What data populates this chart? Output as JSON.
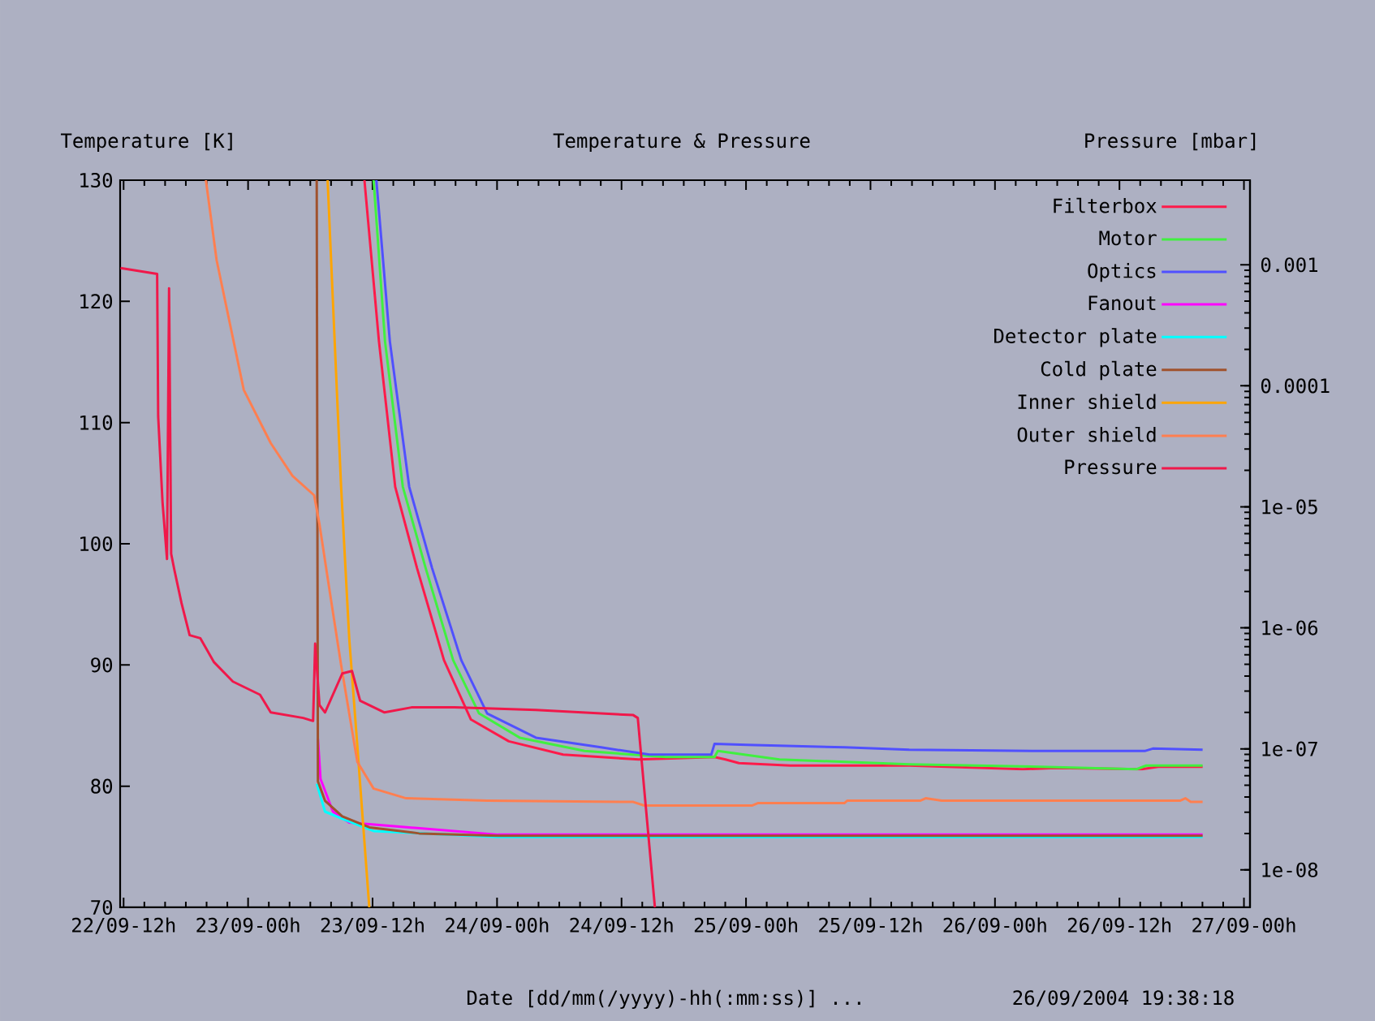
{
  "chart_data": {
    "type": "line",
    "title": "Temperature & Pressure",
    "ylabel": "Temperature [K]",
    "y2label": "Pressure [mbar]",
    "xlabel": "Date  [dd/mm(/yyyy)-hh(:mm:ss)] ...",
    "annotations": [
      "26/09/2004 19:38:18"
    ],
    "xlim": [
      "2004-09-22T11:40",
      "2004-09-27T00:35"
    ],
    "xticks": [
      {
        "value": "2004-09-22T12:00",
        "label": "22/09-12h"
      },
      {
        "value": "2004-09-23T00:00",
        "label": "23/09-00h"
      },
      {
        "value": "2004-09-23T12:00",
        "label": "23/09-12h"
      },
      {
        "value": "2004-09-24T00:00",
        "label": "24/09-00h"
      },
      {
        "value": "2004-09-24T12:00",
        "label": "24/09-12h"
      },
      {
        "value": "2004-09-25T00:00",
        "label": "25/09-00h"
      },
      {
        "value": "2004-09-25T12:00",
        "label": "25/09-12h"
      },
      {
        "value": "2004-09-26T00:00",
        "label": "26/09-00h"
      },
      {
        "value": "2004-09-26T12:00",
        "label": "26/09-12h"
      },
      {
        "value": "2004-09-27T00:00",
        "label": "27/09-00h"
      }
    ],
    "ylim": [
      70,
      130
    ],
    "yticks": [
      70,
      80,
      90,
      100,
      110,
      120,
      130
    ],
    "y2lim": [
      4.9e-09,
      0.005
    ],
    "y2ticks": [
      {
        "value": 1e-08,
        "label": "1e-08"
      },
      {
        "value": 1e-07,
        "label": "1e-07"
      },
      {
        "value": 1e-06,
        "label": "1e-06"
      },
      {
        "value": 1e-05,
        "label": "1e-05"
      },
      0.0001,
      0.001
    ],
    "log": "y2",
    "legend": "top right",
    "series": [
      {
        "name": "Filterbox",
        "color": "#ff1a4a",
        "x": [
          "2004-09-23T11:13",
          "2004-09-23T12:37",
          "2004-09-23T14:11",
          "2004-09-23T16:17",
          "2004-09-23T18:53",
          "2004-09-23T21:29",
          "2004-09-24T01:08",
          "2004-09-24T06:22",
          "2004-09-24T13:40",
          "2004-09-24T20:58",
          "2004-09-24T22:01",
          "2004-09-24T23:19",
          "2004-09-25T04:16",
          "2004-09-25T15:44",
          "2004-09-26T02:42",
          "2004-09-26T05:50",
          "2004-09-26T14:10",
          "2004-09-26T15:44",
          "2004-09-26T20:01"
        ],
        "values": [
          130,
          116.7,
          104.7,
          98.0,
          90.4,
          85.5,
          83.7,
          82.6,
          82.2,
          82.4,
          82.2,
          81.9,
          81.7,
          81.7,
          81.4,
          81.5,
          81.4,
          81.6,
          81.6
        ]
      },
      {
        "name": "Motor",
        "color": "#40f040",
        "x": [
          "2004-09-23T12:06",
          "2004-09-23T13:12",
          "2004-09-23T14:55",
          "2004-09-23T17:07",
          "2004-09-23T19:46",
          "2004-09-23T22:16",
          "2004-09-24T02:11",
          "2004-09-24T08:26",
          "2004-09-24T16:16",
          "2004-09-24T20:58",
          "2004-09-24T21:17",
          "2004-09-25T03:13",
          "2004-09-25T15:44",
          "2004-09-26T04:16",
          "2004-09-26T13:39",
          "2004-09-26T14:35",
          "2004-09-26T20:01"
        ],
        "values": [
          130,
          116.7,
          104.7,
          98.0,
          90.4,
          86.0,
          84.0,
          82.9,
          82.4,
          82.4,
          82.9,
          82.2,
          81.8,
          81.6,
          81.4,
          81.7,
          81.7
        ]
      },
      {
        "name": "Optics",
        "color": "#5050ff",
        "x": [
          "2004-09-23T12:22",
          "2004-09-23T13:40",
          "2004-09-23T15:32",
          "2004-09-23T17:44",
          "2004-09-23T20:33",
          "2004-09-23T23:03",
          "2004-09-24T03:45",
          "2004-09-24T10:01",
          "2004-09-24T14:42",
          "2004-09-24T20:39",
          "2004-09-24T20:58",
          "2004-09-25T00:05",
          "2004-09-25T09:29",
          "2004-09-25T15:44",
          "2004-09-26T04:16",
          "2004-09-26T14:26",
          "2004-09-26T15:13",
          "2004-09-26T20:01"
        ],
        "values": [
          130,
          116.7,
          104.7,
          98.0,
          90.4,
          86.0,
          84.0,
          83.2,
          82.6,
          82.6,
          83.5,
          83.4,
          83.2,
          83.0,
          82.9,
          82.9,
          83.1,
          83.0
        ]
      },
      {
        "name": "Fanout",
        "color": "#ff00ff",
        "x": [
          "2004-09-23T06:44",
          "2004-09-23T06:59",
          "2004-09-23T08:11",
          "2004-09-23T09:45",
          "2004-09-23T16:30",
          "2004-09-24T00:06",
          "2004-09-26T20:01"
        ],
        "values": [
          83.9,
          80.6,
          77.9,
          77.0,
          null,
          76.0,
          76.0
        ]
      },
      {
        "name": "Detector plate",
        "color": "#00ffff",
        "x": [
          "2004-09-23T06:37",
          "2004-09-23T07:25",
          "2004-09-23T09:05",
          "2004-09-23T12:06",
          "2004-09-24T00:06",
          "2004-09-26T20:01"
        ],
        "values": [
          80.2,
          77.9,
          77.3,
          76.3,
          75.8,
          75.8
        ]
      },
      {
        "name": "Cold plate",
        "color": "#a0522d",
        "x": [
          "2004-09-23T06:37",
          "2004-09-23T06:44",
          "2004-09-23T07:25",
          "2004-09-23T09:05",
          "2004-09-23T11:42",
          "2004-09-23T16:30",
          "2004-09-24T00:06",
          "2004-09-26T20:01"
        ],
        "values": [
          130,
          80.4,
          78.8,
          77.5,
          76.6,
          76.1,
          75.9,
          75.9
        ]
      },
      {
        "name": "Inner shield",
        "color": "#ffa500",
        "x": [
          "2004-09-23T07:40",
          "2004-09-23T08:11",
          "2004-09-23T08:58",
          "2004-09-23T09:45",
          "2004-09-23T10:32",
          "2004-09-23T11:41"
        ],
        "values": [
          130,
          119.9,
          104.7,
          92.2,
          83.3,
          70
        ]
      },
      {
        "name": "Outer shield",
        "color": "#ff7f50",
        "x": [
          "2004-09-22T19:56",
          "2004-09-22T20:58",
          "2004-09-22T23:35",
          "2004-09-23T02:11",
          "2004-09-23T04:17",
          "2004-09-23T06:22",
          "2004-09-23T06:53",
          "2004-09-23T07:55",
          "2004-09-23T08:58",
          "2004-09-23T10:32",
          "2004-09-23T12:06",
          "2004-09-23T15:14",
          "2004-09-23T23:03",
          "2004-09-24T13:08",
          "2004-09-24T14:11",
          "2004-09-25T00:34",
          "2004-09-25T01:08",
          "2004-09-25T09:29",
          "2004-09-25T09:45",
          "2004-09-25T16:47",
          "2004-09-25T17:19",
          "2004-09-25T18:52",
          "2004-09-26T17:50",
          "2004-09-26T18:21",
          "2004-09-26T18:52",
          "2004-09-26T20:01"
        ],
        "values": [
          130,
          123.4,
          112.7,
          108.3,
          105.6,
          104.0,
          101.6,
          95.8,
          90.0,
          82.0,
          79.8,
          79.0,
          78.8,
          78.7,
          78.4,
          78.4,
          78.6,
          78.6,
          78.8,
          78.8,
          79.0,
          78.8,
          78.8,
          79.0,
          78.7,
          78.7
        ]
      },
      {
        "name": "Pressure",
        "color": "#f0184a",
        "axis": "y2",
        "x": [
          "2004-09-22T11:42",
          "2004-09-22T15:14",
          "2004-09-22T15:20",
          "2004-09-22T15:45",
          "2004-09-22T16:11",
          "2004-09-22T16:23",
          "2004-09-22T16:35",
          "2004-09-22T16:54",
          "2004-09-22T17:35",
          "2004-09-22T18:22",
          "2004-09-22T19:24",
          "2004-09-22T20:43",
          "2004-09-22T22:32",
          "2004-09-23T01:09",
          "2004-09-23T02:11",
          "2004-09-23T05:19",
          "2004-09-23T06:16",
          "2004-09-23T06:28",
          "2004-09-23T06:53",
          "2004-09-23T07:25",
          "2004-09-23T09:05",
          "2004-09-23T10:01",
          "2004-09-23T10:48",
          "2004-09-23T13:09",
          "2004-09-23T15:45",
          "2004-09-23T19:55",
          "2004-09-24T03:45",
          "2004-09-24T13:08",
          "2004-09-24T13:34",
          "2004-09-24T15:13"
        ],
        "values": [
          0.00094,
          0.00084,
          5.6e-05,
          1.1e-05,
          3.7e-06,
          0.00064,
          4.1e-06,
          3e-06,
          1.6e-06,
          8.7e-07,
          8.2e-07,
          5.2e-07,
          3.6e-07,
          2.8e-07,
          2e-07,
          1.8e-07,
          1.7e-07,
          7.4e-07,
          2.3e-07,
          2e-07,
          4.2e-07,
          4.4e-07,
          2.5e-07,
          2e-07,
          2.2e-07,
          2.2e-07,
          2.1e-07,
          1.9e-07,
          1.8e-07,
          4.9e-09
        ]
      }
    ]
  }
}
